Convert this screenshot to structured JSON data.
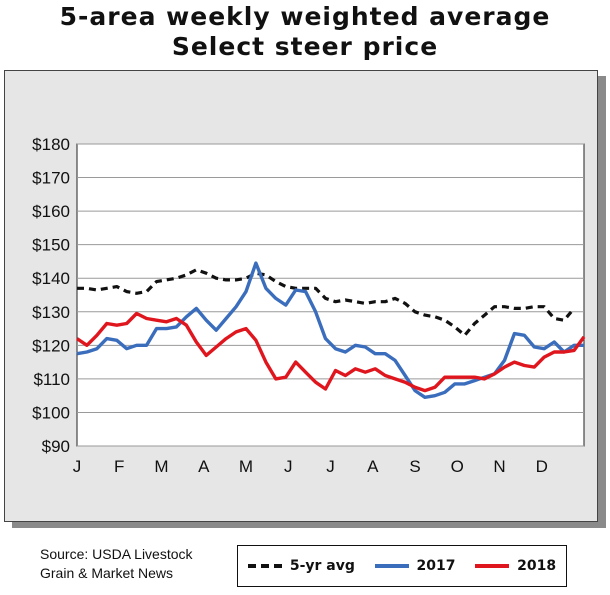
{
  "title_line1": "5-area weekly weighted average",
  "title_line2": "Select steer price",
  "source_line1": "Source: USDA Livestock",
  "source_line2": "Grain & Market News",
  "chart_data": {
    "type": "line",
    "title": "5-area weekly weighted average Select steer price",
    "ylim": [
      90,
      180
    ],
    "y_ticks": [
      90,
      100,
      110,
      120,
      130,
      140,
      150,
      160,
      170,
      180
    ],
    "y_tick_labels": [
      "$90",
      "$100",
      "$110",
      "$120",
      "$130",
      "$140",
      "$150",
      "$160",
      "$170",
      "$180"
    ],
    "months": [
      "J",
      "F",
      "M",
      "A",
      "M",
      "J",
      "J",
      "A",
      "S",
      "O",
      "N",
      "D"
    ],
    "x_range": [
      1,
      52
    ],
    "grid": true,
    "legend_position": "bottom",
    "series": [
      {
        "name": "5-yr avg",
        "style": "dashed",
        "color": "#111111",
        "values": [
          137,
          137,
          136.5,
          137,
          137.5,
          136,
          135.5,
          136,
          139,
          139.5,
          140,
          141,
          142.5,
          141.5,
          140,
          139.5,
          139.5,
          140,
          141.5,
          141,
          139,
          137.5,
          137,
          137,
          137,
          134,
          133,
          133.5,
          133,
          132.5,
          133,
          133,
          134,
          132.5,
          130,
          129,
          128.5,
          127.5,
          125.5,
          123,
          126.5,
          129,
          131.5,
          131.5,
          131,
          131,
          131.5,
          131.5,
          128,
          127.5,
          131
        ]
      },
      {
        "name": "2017",
        "style": "solid",
        "color": "#3b6dbd",
        "values": [
          117.5,
          118,
          119,
          122,
          121.5,
          119,
          120,
          120,
          125,
          125,
          125.5,
          128.5,
          131,
          127.5,
          124.5,
          128,
          131.5,
          136,
          144.5,
          137,
          134,
          132,
          136.5,
          136,
          130,
          122,
          119,
          118,
          120,
          119.5,
          117.5,
          117.5,
          115.5,
          111,
          106.5,
          104.5,
          105,
          106,
          108.5,
          108.5,
          109.5,
          110.5,
          111.5,
          115.5,
          123.5,
          123,
          119.5,
          119,
          121,
          118,
          120,
          120
        ]
      },
      {
        "name": "2018",
        "style": "solid",
        "color": "#e0161e",
        "values": [
          122,
          120,
          123,
          126.5,
          126,
          126.5,
          129.5,
          128,
          127.5,
          127,
          128,
          126,
          121,
          117,
          119.5,
          122,
          124,
          125,
          121.5,
          115,
          110,
          110.5,
          115,
          112,
          109,
          107,
          112.5,
          111,
          113,
          112,
          113,
          111,
          110,
          109,
          107.5,
          106.5,
          107.5,
          110.5,
          110.5,
          110.5,
          110.5,
          110,
          111.5,
          113.5,
          115,
          114,
          113.5,
          116.5,
          118,
          118,
          118.5,
          122.5
        ]
      }
    ]
  }
}
